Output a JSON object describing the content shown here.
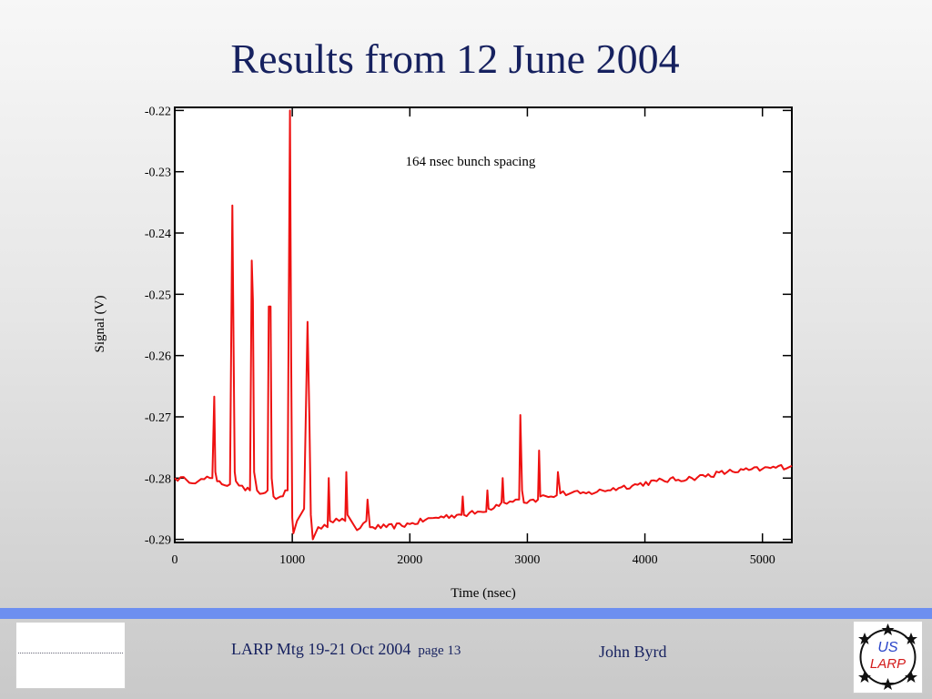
{
  "slide": {
    "title": "Results from 12 June 2004"
  },
  "footer": {
    "meeting": "LARP Mtg 19-21 Oct 2004",
    "page": "page 13",
    "author": "John Byrd",
    "logo_line1": "US",
    "logo_line2": "LARP"
  },
  "colors": {
    "title": "#16215f",
    "trace": "#ee1111",
    "footer_bar": "#6d8ff0"
  },
  "chart_data": {
    "type": "line",
    "title": "",
    "xlabel": "Time (nsec)",
    "ylabel": "Signal (V)",
    "annotation": "164 nsec bunch spacing",
    "xlim": [
      0,
      5250
    ],
    "ylim": [
      -0.29,
      -0.22
    ],
    "xticks": [
      0,
      1000,
      2000,
      3000,
      4000,
      5000
    ],
    "yticks": [
      -0.22,
      -0.23,
      -0.24,
      -0.25,
      -0.26,
      -0.27,
      -0.28,
      -0.29
    ],
    "ytick_labels": [
      "-0.22",
      "-0.23",
      "-0.24",
      "-0.25",
      "-0.26",
      "-0.27",
      "-0.28",
      "-0.29"
    ],
    "grid": false,
    "series": [
      {
        "name": "",
        "x": [
          0,
          100,
          200,
          300,
          320,
          336,
          345,
          360,
          400,
          470,
          490,
          500,
          510,
          520,
          600,
          640,
          655,
          665,
          675,
          700,
          750,
          790,
          800,
          815,
          825,
          840,
          900,
          960,
          980,
          990,
          1000,
          1010,
          1040,
          1100,
          1130,
          1145,
          1158,
          1175,
          1220,
          1300,
          1310,
          1320,
          1400,
          1450,
          1460,
          1470,
          1550,
          1630,
          1640,
          1660,
          1800,
          2000,
          2200,
          2400,
          2440,
          2450,
          2460,
          2600,
          2650,
          2660,
          2670,
          2780,
          2790,
          2800,
          2900,
          2930,
          2940,
          2955,
          2970,
          3050,
          3090,
          3100,
          3110,
          3200,
          3250,
          3260,
          3280,
          3500,
          3800,
          4100,
          4400,
          4700,
          5000,
          5250
        ],
        "y": [
          -0.28,
          -0.2803,
          -0.2805,
          -0.28,
          -0.28,
          -0.2667,
          -0.279,
          -0.2805,
          -0.281,
          -0.281,
          -0.2355,
          -0.258,
          -0.279,
          -0.2805,
          -0.282,
          -0.282,
          -0.2445,
          -0.251,
          -0.279,
          -0.282,
          -0.2825,
          -0.282,
          -0.252,
          -0.252,
          -0.28,
          -0.283,
          -0.283,
          -0.282,
          -0.22,
          -0.26,
          -0.2865,
          -0.289,
          -0.287,
          -0.285,
          -0.2545,
          -0.27,
          -0.286,
          -0.29,
          -0.288,
          -0.288,
          -0.28,
          -0.287,
          -0.287,
          -0.287,
          -0.279,
          -0.286,
          -0.2885,
          -0.287,
          -0.2835,
          -0.288,
          -0.288,
          -0.2875,
          -0.2865,
          -0.286,
          -0.286,
          -0.283,
          -0.286,
          -0.2855,
          -0.2855,
          -0.282,
          -0.285,
          -0.284,
          -0.28,
          -0.284,
          -0.2835,
          -0.2835,
          -0.2697,
          -0.282,
          -0.284,
          -0.2835,
          -0.2835,
          -0.2755,
          -0.283,
          -0.283,
          -0.2828,
          -0.279,
          -0.2825,
          -0.2825,
          -0.2815,
          -0.2805,
          -0.28,
          -0.279,
          -0.2785,
          -0.278
        ]
      }
    ]
  }
}
